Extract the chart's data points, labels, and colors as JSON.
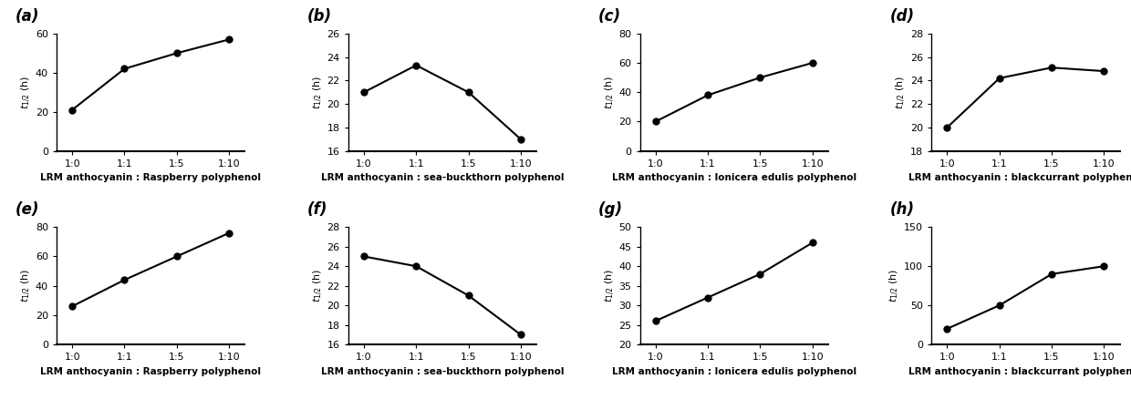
{
  "x_labels": [
    "1:0",
    "1:1",
    "1:5",
    "1:10"
  ],
  "subplots": [
    {
      "label": "(a)",
      "y_values": [
        21,
        42,
        50,
        57
      ],
      "y_lim": [
        0,
        60
      ],
      "y_ticks": [
        0,
        20,
        40,
        60
      ],
      "xlabel": "LRM anthocyanin : Raspberry polyphenol"
    },
    {
      "label": "(b)",
      "y_values": [
        21,
        23.3,
        21,
        17
      ],
      "y_lim": [
        16,
        26
      ],
      "y_ticks": [
        16,
        18,
        20,
        22,
        24,
        26
      ],
      "xlabel": "LRM anthocyanin : sea-buckthorn polyphenol"
    },
    {
      "label": "(c)",
      "y_values": [
        20,
        38,
        50,
        60
      ],
      "y_lim": [
        0,
        80
      ],
      "y_ticks": [
        0,
        20,
        40,
        60,
        80
      ],
      "xlabel": "LRM anthocyanin : lonicera edulis polyphenol"
    },
    {
      "label": "(d)",
      "y_values": [
        20,
        24.2,
        25.1,
        24.8
      ],
      "y_lim": [
        18,
        28
      ],
      "y_ticks": [
        18,
        20,
        22,
        24,
        26,
        28
      ],
      "xlabel": "LRM anthocyanin : blackcurrant polyphenol"
    },
    {
      "label": "(e)",
      "y_values": [
        26,
        44,
        60,
        76
      ],
      "y_lim": [
        0,
        80
      ],
      "y_ticks": [
        0,
        20,
        40,
        60,
        80
      ],
      "xlabel": "LRM anthocyanin : Raspberry polyphenol"
    },
    {
      "label": "(f)",
      "y_values": [
        25,
        24,
        21,
        17
      ],
      "y_lim": [
        16,
        28
      ],
      "y_ticks": [
        16,
        18,
        20,
        22,
        24,
        26,
        28
      ],
      "xlabel": "LRM anthocyanin : sea-buckthorn polyphenol"
    },
    {
      "label": "(g)",
      "y_values": [
        26,
        32,
        38,
        46
      ],
      "y_lim": [
        20,
        50
      ],
      "y_ticks": [
        20,
        25,
        30,
        35,
        40,
        45,
        50
      ],
      "xlabel": "LRM anthocyanin : lonicera edulis polyphenol"
    },
    {
      "label": "(h)",
      "y_values": [
        20,
        50,
        90,
        100
      ],
      "y_lim": [
        0,
        150
      ],
      "y_ticks": [
        0,
        50,
        100,
        150
      ],
      "xlabel": "LRM anthocyanin : blackcurrant polyphenol"
    }
  ],
  "ylabel": "$t_{1/2}$ (h)",
  "marker": "o",
  "line_color": "black",
  "marker_color": "black",
  "marker_size": 5,
  "line_width": 1.5,
  "tick_fontsize": 8,
  "xlabel_fontsize": 7.5,
  "ylabel_fontsize": 8,
  "panel_label_fontsize": 12
}
